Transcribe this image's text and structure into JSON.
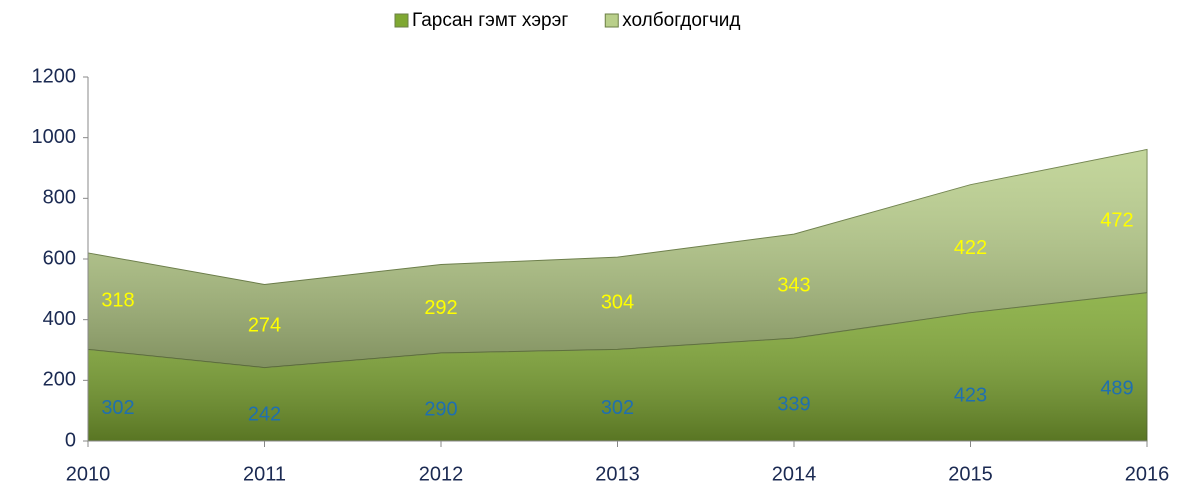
{
  "chart_data": {
    "type": "area",
    "stacked": true,
    "x": [
      2010,
      2011,
      2012,
      2013,
      2014,
      2015,
      2016
    ],
    "xlim": [
      2010,
      2016
    ],
    "xticks": [
      2010,
      2011,
      2012,
      2013,
      2014,
      2015,
      2016
    ],
    "ylim": [
      0,
      1200
    ],
    "yticks": [
      0,
      200,
      400,
      600,
      800,
      1000,
      1200
    ],
    "legend": "top",
    "series": [
      {
        "name": "Гарсан гэмт хэрэг",
        "color": "#7fa832",
        "label_color": "#1f6fb0",
        "values": [
          302,
          242,
          290,
          302,
          339,
          423,
          489
        ]
      },
      {
        "name": "холбогдогчид",
        "color": "#b9cf8a",
        "label_color": "#ffff00",
        "values": [
          318,
          274,
          292,
          304,
          343,
          422,
          472
        ]
      }
    ]
  }
}
